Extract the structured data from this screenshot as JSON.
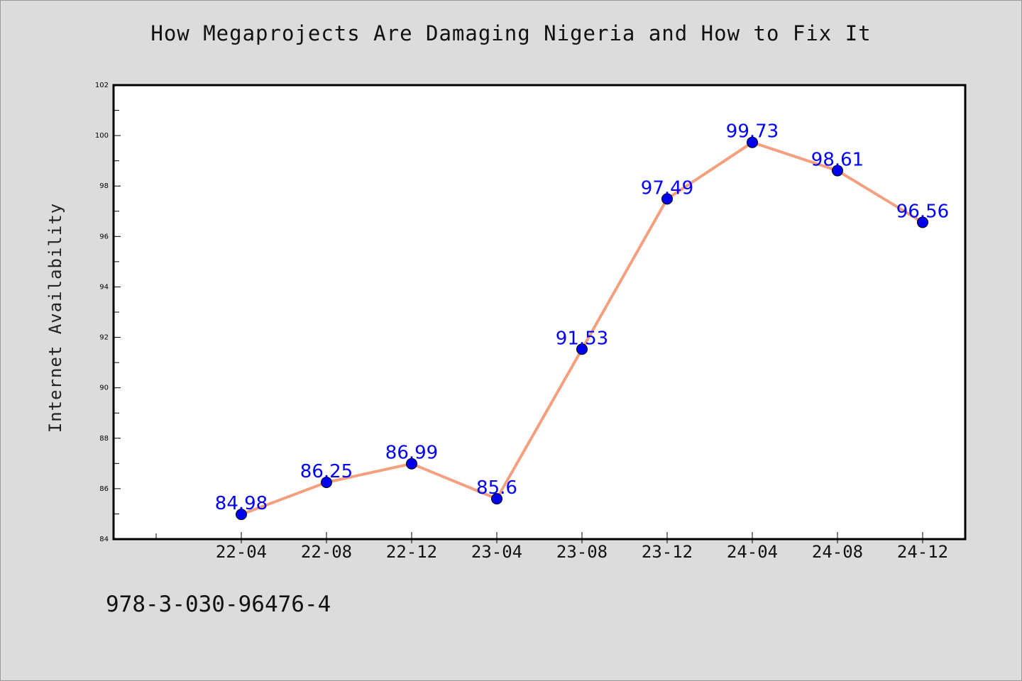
{
  "title": "How Megaprojects Are Damaging Nigeria and How to Fix It",
  "footer_text": "978-3-030-96476-4",
  "chart_data": {
    "type": "line",
    "title": "How Megaprojects Are Damaging Nigeria and How to Fix It",
    "xlabel": "",
    "ylabel": "Internet Availability",
    "categories": [
      "22-04",
      "22-08",
      "22-12",
      "23-04",
      "23-08",
      "23-12",
      "24-04",
      "24-08",
      "24-12"
    ],
    "series": [
      {
        "values": [
          84.98,
          86.25,
          86.99,
          85.6,
          91.53,
          97.49,
          99.73,
          98.61,
          96.56
        ],
        "data_labels": [
          "84.98",
          "86.25",
          "86.99",
          "85.6",
          "91.53",
          "97.49",
          "99.73",
          "98.61",
          "96.56"
        ],
        "line_color": "#f4a07e",
        "marker_color": "#0000ee",
        "label_color": "#0000ff"
      }
    ],
    "ylim": [
      84,
      102
    ],
    "y_ticks": [
      "84",
      "86",
      "88",
      "90",
      "92",
      "94",
      "96",
      "98",
      "100",
      "102"
    ],
    "grid": false,
    "legend": "none"
  }
}
